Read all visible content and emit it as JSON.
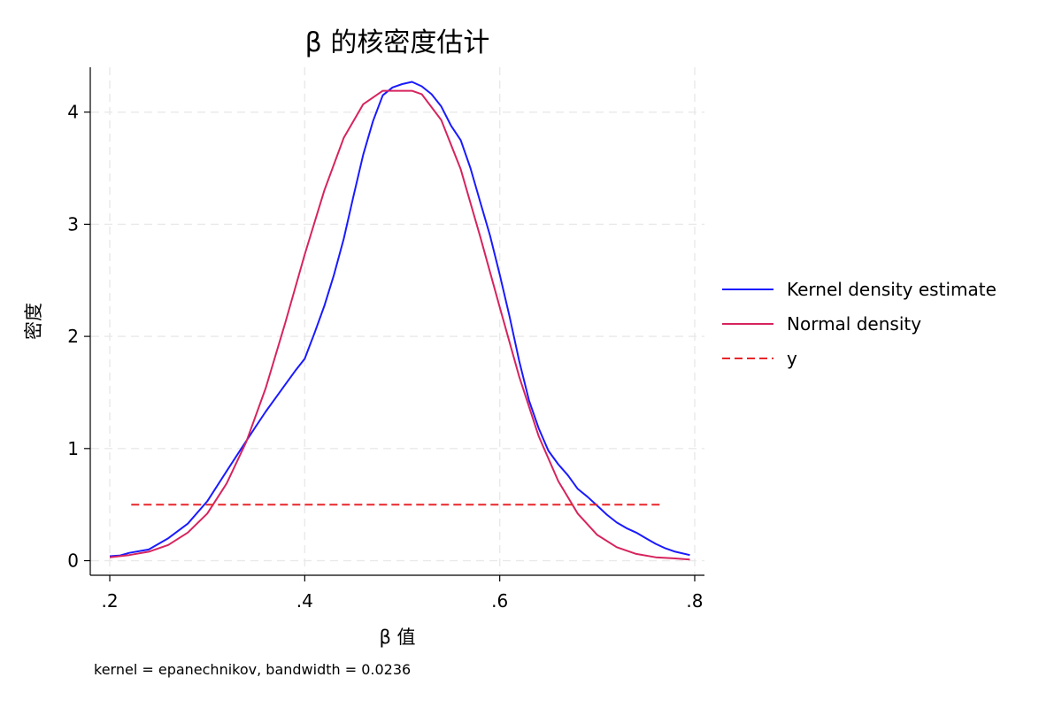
{
  "chart_data": {
    "type": "line",
    "title": "β 的核密度估计",
    "xlabel": "β 值",
    "ylabel": "密度",
    "note": "kernel = epanechnikov, bandwidth = 0.0236",
    "xlim": [
      0.18,
      0.81
    ],
    "ylim": [
      -0.13,
      4.4
    ],
    "xticks": [
      0.2,
      0.4,
      0.6,
      0.8
    ],
    "xtick_labels": [
      ".2",
      ".4",
      ".6",
      ".8"
    ],
    "yticks": [
      0,
      1,
      2,
      3,
      4
    ],
    "ytick_labels": [
      "0",
      "1",
      "2",
      "3",
      "4"
    ],
    "grid": true,
    "legend_position": "right",
    "series": [
      {
        "name": "Kernel density estimate",
        "color": "#1a1aff",
        "style": "solid",
        "x": [
          0.2,
          0.21,
          0.22,
          0.24,
          0.26,
          0.28,
          0.3,
          0.32,
          0.335,
          0.35,
          0.36,
          0.37,
          0.38,
          0.39,
          0.4,
          0.41,
          0.42,
          0.43,
          0.44,
          0.45,
          0.46,
          0.47,
          0.48,
          0.49,
          0.5,
          0.51,
          0.52,
          0.53,
          0.54,
          0.55,
          0.56,
          0.57,
          0.58,
          0.59,
          0.6,
          0.61,
          0.62,
          0.63,
          0.64,
          0.65,
          0.66,
          0.67,
          0.68,
          0.69,
          0.7,
          0.71,
          0.72,
          0.73,
          0.74,
          0.75,
          0.76,
          0.77,
          0.78,
          0.795
        ],
        "y": [
          0.04,
          0.045,
          0.07,
          0.1,
          0.2,
          0.33,
          0.53,
          0.8,
          1.0,
          1.2,
          1.33,
          1.45,
          1.57,
          1.69,
          1.8,
          2.03,
          2.27,
          2.55,
          2.87,
          3.25,
          3.62,
          3.92,
          4.15,
          4.22,
          4.25,
          4.27,
          4.23,
          4.16,
          4.05,
          3.88,
          3.75,
          3.5,
          3.2,
          2.9,
          2.55,
          2.18,
          1.78,
          1.43,
          1.18,
          0.98,
          0.86,
          0.76,
          0.64,
          0.57,
          0.49,
          0.41,
          0.34,
          0.29,
          0.25,
          0.2,
          0.15,
          0.11,
          0.08,
          0.05
        ]
      },
      {
        "name": "Normal density",
        "color": "#d6245e",
        "style": "solid",
        "x": [
          0.2,
          0.22,
          0.24,
          0.26,
          0.28,
          0.3,
          0.32,
          0.34,
          0.36,
          0.38,
          0.4,
          0.42,
          0.44,
          0.46,
          0.48,
          0.5,
          0.51,
          0.52,
          0.54,
          0.56,
          0.58,
          0.6,
          0.62,
          0.64,
          0.66,
          0.68,
          0.7,
          0.72,
          0.74,
          0.76,
          0.78,
          0.795
        ],
        "y": [
          0.03,
          0.05,
          0.08,
          0.14,
          0.25,
          0.42,
          0.69,
          1.06,
          1.54,
          2.12,
          2.73,
          3.3,
          3.77,
          4.07,
          4.19,
          4.19,
          4.19,
          4.16,
          3.93,
          3.49,
          2.89,
          2.26,
          1.64,
          1.11,
          0.71,
          0.42,
          0.23,
          0.12,
          0.06,
          0.03,
          0.02,
          0.01
        ]
      },
      {
        "name": "y",
        "color": "#e8262a",
        "style": "dashed",
        "x": [
          0.222,
          0.765
        ],
        "y": [
          0.5,
          0.5
        ]
      }
    ]
  }
}
